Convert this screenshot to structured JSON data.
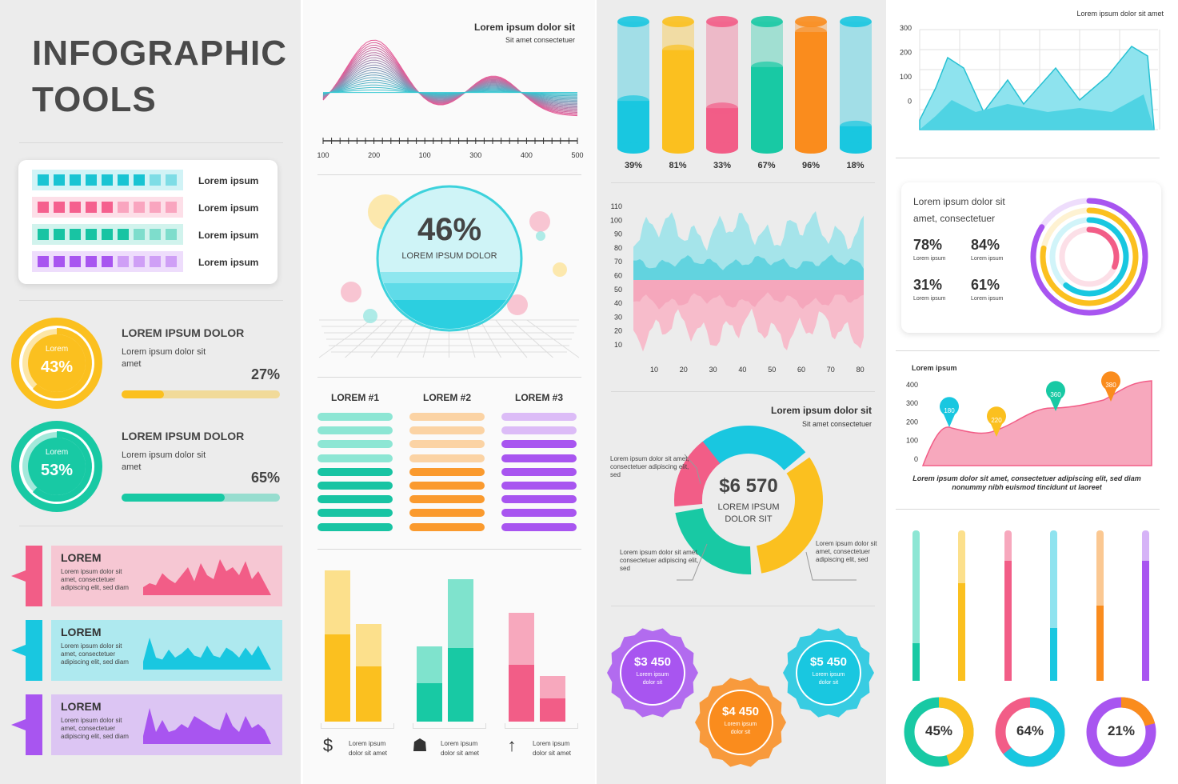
{
  "title_line1": "INFOGRAPHIC",
  "title_line2": "TOOLS",
  "colors": {
    "teal": "#1fc8c8",
    "pink": "#f25d87",
    "green": "#18c9a4",
    "purple": "#a855f0",
    "yellow": "#fbc01f",
    "orange": "#fa8c1d",
    "cyan": "#19c7e0"
  },
  "legend_items": [
    {
      "label": "Lorem ipsum",
      "filled": 7,
      "color": "#19c4d3"
    },
    {
      "label": "Lorem ipsum",
      "filled": 5,
      "color": "#f5608e"
    },
    {
      "label": "Lorem ipsum",
      "filled": 6,
      "color": "#18c4a3"
    },
    {
      "label": "Lorem ipsum",
      "filled": 5,
      "color": "#a855f0"
    }
  ],
  "ring_stats": [
    {
      "ring_label": "Lorem",
      "ring_value": "43%",
      "heading": "LOREM IPSUM DOLOR",
      "text": "Lorem ipsum dolor sit amet",
      "bar_value": "27%",
      "bar_fraction": 0.27,
      "color": "#fbc01f"
    },
    {
      "ring_label": "Lorem",
      "ring_value": "53%",
      "heading": "LOREM IPSUM DOLOR",
      "text": "Lorem ipsum dolor sit amet",
      "bar_value": "65%",
      "bar_fraction": 0.65,
      "color": "#18c9a4"
    }
  ],
  "tag_cards": [
    {
      "title": "LOREM",
      "text": "Lorem ipsum dolor sit amet, consectetuer adipiscing elit, sed diam",
      "color": "#f25d87",
      "bg": "#f6c7d3"
    },
    {
      "title": "LOREM",
      "text": "Lorem ipsum dolor sit amet, consectetuer adipiscing elit, sed diam",
      "color": "#19c7e0",
      "bg": "#aee9ef"
    },
    {
      "title": "LOREM",
      "text": "Lorem ipsum dolor sit amet, consectetuer adipiscing elit, sed diam",
      "color": "#a855f0",
      "bg": "#dcc5f3"
    }
  ],
  "wave_chart": {
    "title": "Lorem ipsum dolor sit",
    "subtitle": "Sit amet consectetuer",
    "x_ticks": [
      "100",
      "200",
      "100",
      "300",
      "400",
      "500"
    ]
  },
  "sphere": {
    "value": "46%",
    "label": "LOREM IPSUM DOLOR",
    "fill_fraction": 0.46
  },
  "lists": [
    {
      "title": "LOREM #1",
      "color": "#18c4a3",
      "light": "#8de6d4",
      "dark_count": 5
    },
    {
      "title": "LOREM #2",
      "color": "#fa9a2e",
      "light": "#fbd3a4",
      "dark_count": 5
    },
    {
      "title": "LOREM #3",
      "color": "#a855f0",
      "light": "#dcbcf7",
      "dark_count": 7
    }
  ],
  "grouped_bars": [
    {
      "icon": "piggy-bank-icon",
      "text": "Lorem ipsum dolor sit amet",
      "color": "#fbc01f",
      "light": "#fce08c",
      "bars": [
        {
          "total": 0.9,
          "fill": 0.52
        },
        {
          "total": 0.58,
          "fill": 0.33
        }
      ]
    },
    {
      "icon": "cart-icon",
      "text": "Lorem ipsum dolor sit amet",
      "color": "#18c9a4",
      "light": "#7fe3cd",
      "bars": [
        {
          "total": 0.45,
          "fill": 0.23
        },
        {
          "total": 0.85,
          "fill": 0.44
        }
      ]
    },
    {
      "icon": "people-icon",
      "text": "Lorem ipsum dolor sit amet",
      "color": "#f25d87",
      "light": "#f7a8bd",
      "bars": [
        {
          "total": 0.65,
          "fill": 0.34
        },
        {
          "total": 0.27,
          "fill": 0.14
        }
      ]
    }
  ],
  "cylinders": {
    "type": "bar",
    "categories": [
      "39%",
      "81%",
      "33%",
      "67%",
      "96%",
      "18%"
    ],
    "values": [
      39,
      81,
      33,
      67,
      96,
      18
    ],
    "colors": [
      "#19c7e0",
      "#fbc01f",
      "#f25d87",
      "#18c9a4",
      "#fa8c1d",
      "#19c7e0"
    ]
  },
  "area_chart": {
    "y_ticks": [
      "110",
      "100",
      "90",
      "80",
      "70",
      "60",
      "50",
      "40",
      "30",
      "20",
      "10"
    ],
    "x_ticks": [
      "10",
      "20",
      "30",
      "40",
      "50",
      "60",
      "70",
      "80"
    ]
  },
  "donut": {
    "title": "Lorem ipsum dolor sit",
    "subtitle": "Sit amet consectetuer",
    "value": "$6 570",
    "label1": "LOREM IPSUM",
    "label2": "DOLOR SIT",
    "note_top_left": "Lorem ipsum dolor sit amet, consectetuer adipiscing elit, sed",
    "note_bottom_left": "Lorem ipsum dolor sit amet, consectetuer adipiscing elit, sed",
    "note_right": "Lorem ipsum dolor sit amet, consectetuer adipiscing elit, sed"
  },
  "badges": [
    {
      "value": "$3 450",
      "text": "Lorem ipsum dolor sit",
      "color": "#a855f0"
    },
    {
      "value": "$4 450",
      "text": "Lorem ipsum dolor sit",
      "color": "#fa8c1d"
    },
    {
      "value": "$5 450",
      "text": "Lorem ipsum dolor sit",
      "color": "#19c7e0"
    }
  ],
  "mountain_chart": {
    "title": "Lorem ipsum dolor sit amet",
    "y_ticks": [
      "300",
      "200",
      "100",
      "0"
    ]
  },
  "radial_card": {
    "text": "Lorem ipsum dolor sit amet, consectetuer",
    "stats": [
      {
        "value": "78%",
        "label": "Lorem ipsum"
      },
      {
        "value": "84%",
        "label": "Lorem ipsum"
      },
      {
        "value": "31%",
        "label": "Lorem ipsum"
      },
      {
        "value": "61%",
        "label": "Lorem ipsum"
      }
    ]
  },
  "pin_chart": {
    "title": "Lorem ipsum",
    "y_ticks": [
      "400",
      "300",
      "200",
      "100",
      "0"
    ],
    "pins": [
      {
        "value": "180",
        "color": "#19c7e0"
      },
      {
        "value": "220",
        "color": "#fbc01f"
      },
      {
        "value": "360",
        "color": "#18c9a4"
      },
      {
        "value": "380",
        "color": "#fa8c1d"
      }
    ],
    "caption": "Lorem ipsum dolor sit amet, consectetuer adipiscing elit, sed diam nonummy nibh euismod tincidunt ut laoreet"
  },
  "vertical_bars": [
    {
      "fraction": 0.25,
      "color": "#18c9a4",
      "light": "#8de6d4"
    },
    {
      "fraction": 0.65,
      "color": "#fbc01f",
      "light": "#fce08c"
    },
    {
      "fraction": 0.8,
      "color": "#f25d87",
      "light": "#f7a8bd"
    },
    {
      "fraction": 0.35,
      "color": "#19c7e0",
      "light": "#8fe3ef"
    },
    {
      "fraction": 0.5,
      "color": "#fa8c1d",
      "light": "#fbc892"
    },
    {
      "fraction": 0.8,
      "color": "#a855f0",
      "light": "#d6b3f7"
    }
  ],
  "small_donuts": [
    {
      "value": "45%",
      "fraction": 0.45,
      "color": "#fbc01f",
      "base": "#18c9a4"
    },
    {
      "value": "64%",
      "fraction": 0.64,
      "color": "#19c7e0",
      "base": "#f25d87"
    },
    {
      "value": "21%",
      "fraction": 0.21,
      "color": "#fa8c1d",
      "base": "#a855f0"
    }
  ]
}
